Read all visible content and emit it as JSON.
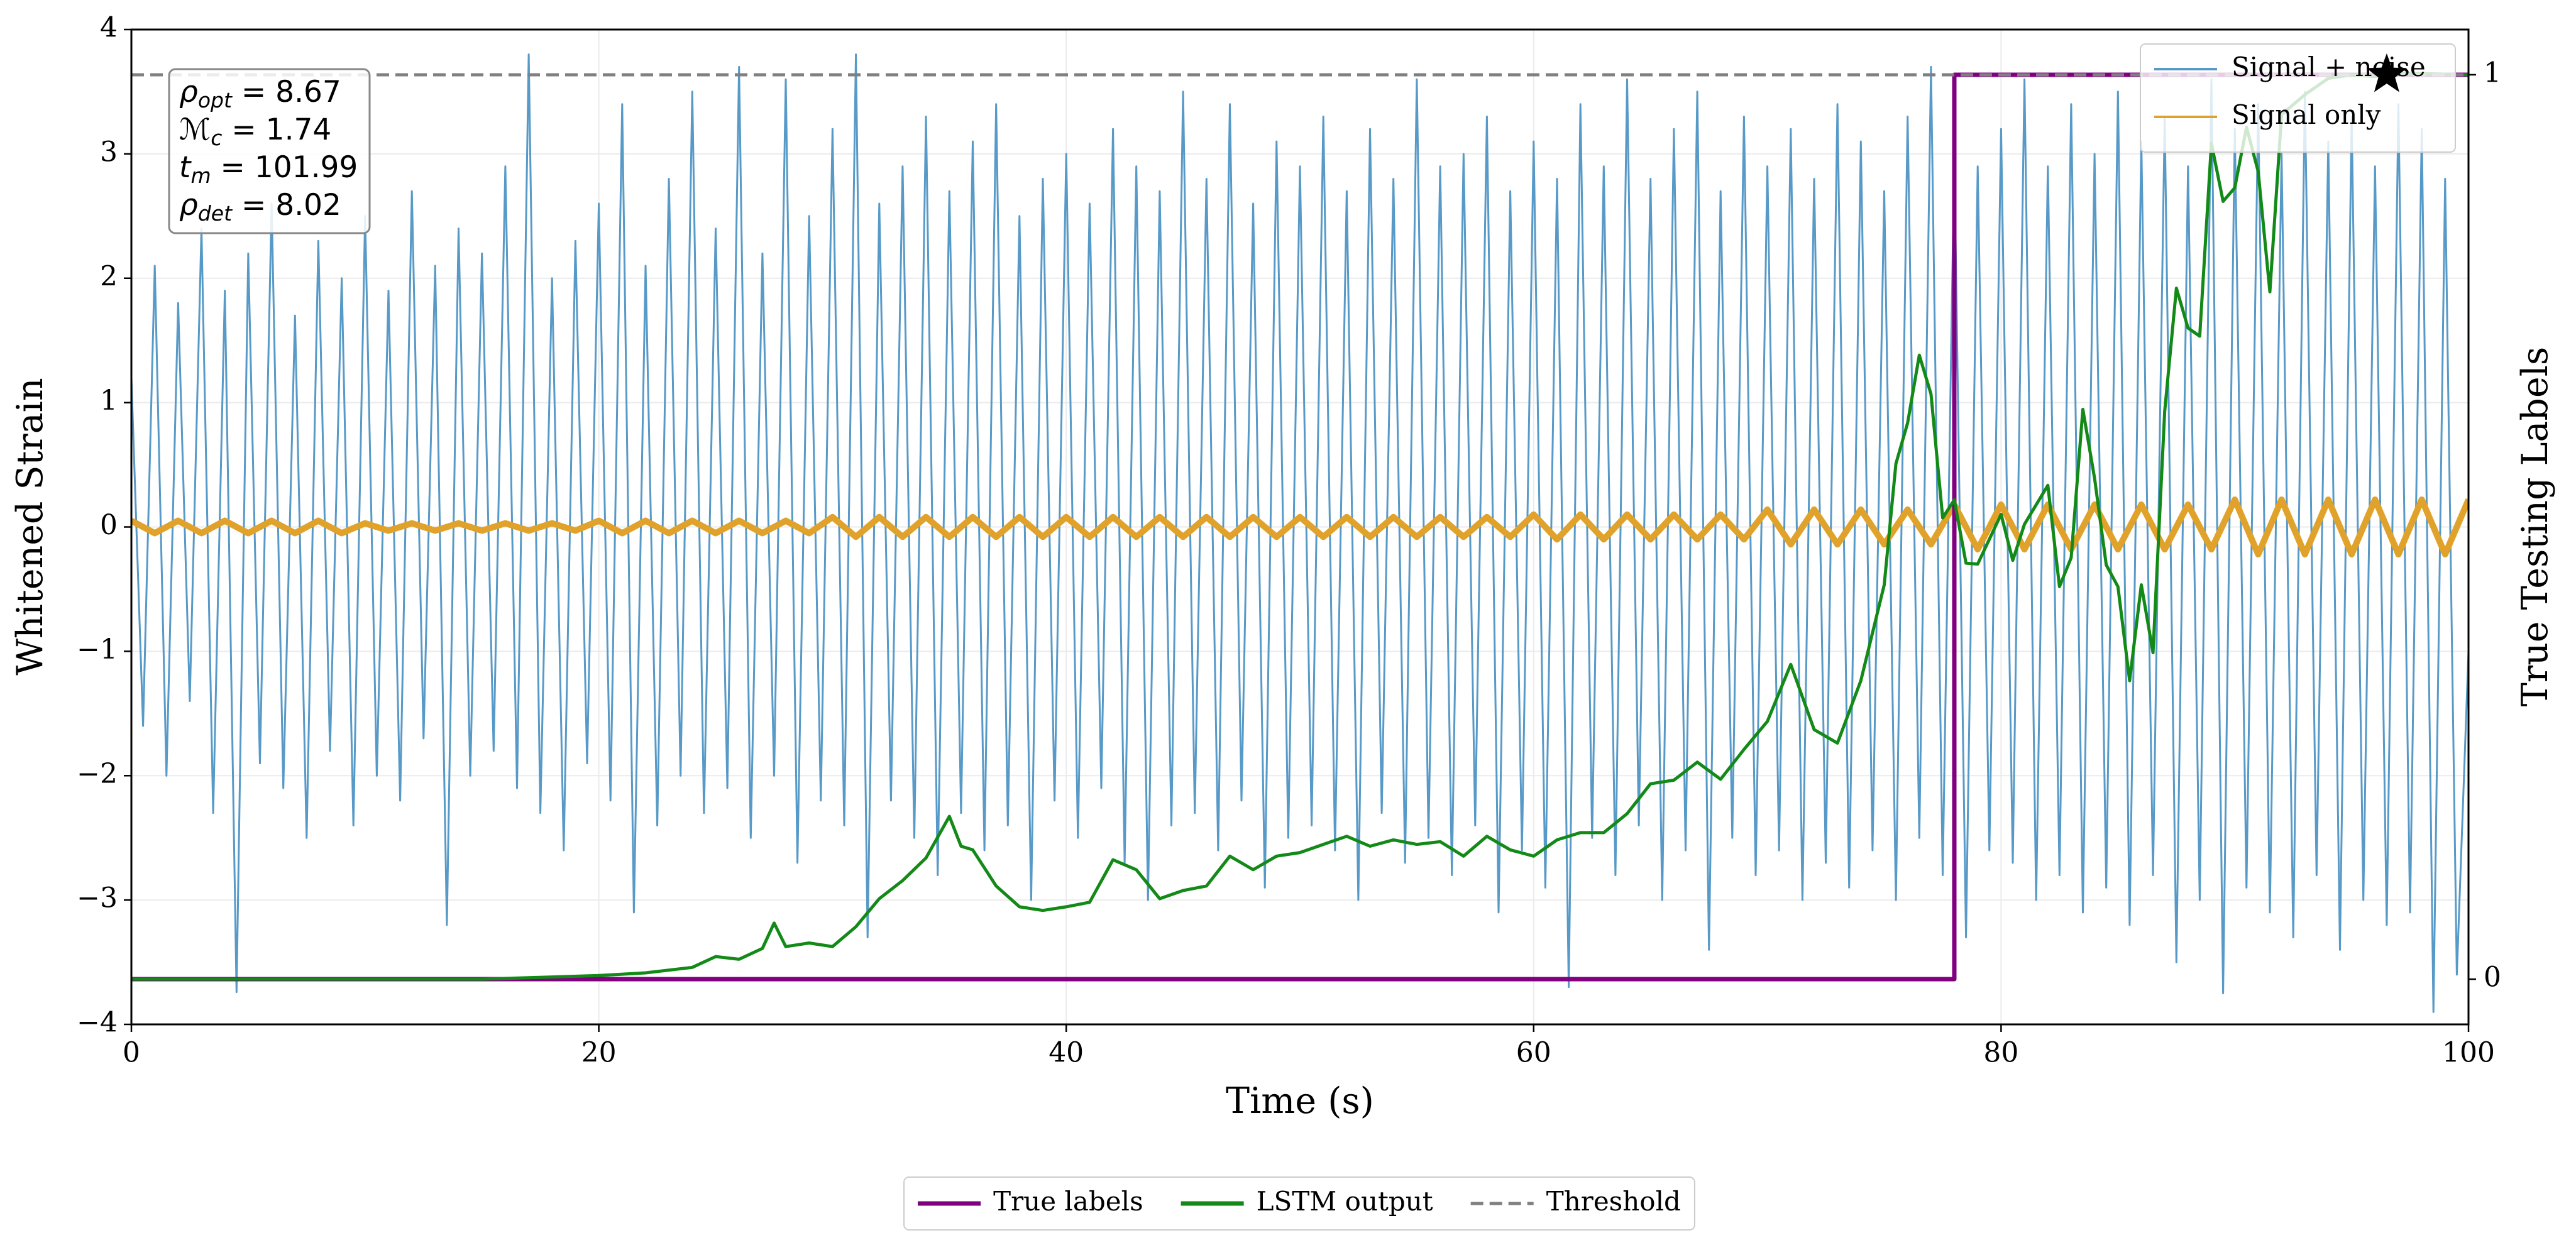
{
  "chart_data": {
    "type": "line",
    "xlabel": "Time (s)",
    "ylabel": "Whitened Strain",
    "y2label": "True Testing Labels",
    "xlim": [
      0,
      100
    ],
    "xticks": [
      0,
      20,
      40,
      60,
      80,
      100
    ],
    "ylim": [
      -4,
      4
    ],
    "yticks": [
      {
        "value": -4,
        "label": "−4"
      },
      {
        "value": -3,
        "label": "−3"
      },
      {
        "value": -2,
        "label": "−2"
      },
      {
        "value": -1,
        "label": "−1"
      },
      0,
      1,
      2,
      3,
      4
    ],
    "y2lim": [
      -0.05,
      1.05
    ],
    "y2ticks": [
      0,
      1
    ],
    "grid": true,
    "series": [
      {
        "name": "Signal + noise",
        "color": "#5799c7",
        "width": 3,
        "legend": "upper right",
        "x": [
          0,
          0.5,
          1,
          1.5,
          2,
          2.5,
          3,
          3.5,
          4,
          4.5,
          5,
          5.5,
          6,
          6.5,
          7,
          7.5,
          8,
          8.5,
          9,
          9.5,
          10,
          10.5,
          11,
          11.5,
          12,
          12.5,
          13,
          13.5,
          14,
          14.5,
          15,
          15.5,
          16,
          16.5,
          17,
          17.5,
          18,
          18.5,
          19,
          19.5,
          20,
          20.5,
          21,
          21.5,
          22,
          22.5,
          23,
          23.5,
          24,
          24.5,
          25,
          25.5,
          26,
          26.5,
          27,
          27.5,
          28,
          28.5,
          29,
          29.5,
          30,
          30.5,
          31,
          31.5,
          32,
          32.5,
          33,
          33.5,
          34,
          34.5,
          35,
          35.5,
          36,
          36.5,
          37,
          37.5,
          38,
          38.5,
          39,
          39.5,
          40,
          40.5,
          41,
          41.5,
          42,
          42.5,
          43,
          43.5,
          44,
          44.5,
          45,
          45.5,
          46,
          46.5,
          47,
          47.5,
          48,
          48.5,
          49,
          49.5,
          50,
          50.5,
          51,
          51.5,
          52,
          52.5,
          53,
          53.5,
          54,
          54.5,
          55,
          55.5,
          56,
          56.5,
          57,
          57.5,
          58,
          58.5,
          59,
          59.5,
          60,
          60.5,
          61,
          61.5,
          62,
          62.5,
          63,
          63.5,
          64,
          64.5,
          65,
          65.5,
          66,
          66.5,
          67,
          67.5,
          68,
          68.5,
          69,
          69.5,
          70,
          70.5,
          71,
          71.5,
          72,
          72.5,
          73,
          73.5,
          74,
          74.5,
          75,
          75.5,
          76,
          76.5,
          77,
          77.5,
          78,
          78.5,
          79,
          79.5,
          80,
          80.5,
          81,
          81.5,
          82,
          82.5,
          83,
          83.5,
          84,
          84.5,
          85,
          85.5,
          86,
          86.5,
          87,
          87.5,
          88,
          88.5,
          89,
          89.5,
          90,
          90.5,
          91,
          91.5,
          92,
          92.5,
          93,
          93.5,
          94,
          94.5,
          95,
          95.5,
          96,
          96.5,
          97,
          97.5,
          98,
          98.5,
          99,
          99.5,
          100
        ],
        "values": [
          1.2,
          -1.6,
          2.1,
          -2.0,
          1.8,
          -1.4,
          2.4,
          -2.3,
          1.9,
          -3.74,
          2.2,
          -1.9,
          2.6,
          -2.1,
          1.7,
          -2.5,
          2.3,
          -1.8,
          2.0,
          -2.4,
          2.5,
          -2.0,
          1.9,
          -2.2,
          2.7,
          -1.7,
          2.1,
          -3.2,
          2.4,
          -2.0,
          2.2,
          -1.8,
          2.9,
          -2.1,
          3.8,
          -2.3,
          2.0,
          -2.6,
          2.3,
          -1.9,
          2.6,
          -2.2,
          3.4,
          -3.1,
          2.1,
          -2.4,
          2.8,
          -2.0,
          3.5,
          -2.3,
          2.4,
          -2.1,
          3.7,
          -2.5,
          2.2,
          -2.0,
          3.6,
          -2.7,
          2.5,
          -2.2,
          3.2,
          -2.4,
          3.8,
          -3.3,
          2.6,
          -2.2,
          2.9,
          -2.5,
          3.3,
          -2.8,
          2.7,
          -2.3,
          3.1,
          -2.6,
          3.4,
          -2.4,
          2.5,
          -3.0,
          2.8,
          -2.2,
          3.0,
          -2.5,
          2.6,
          -2.1,
          3.2,
          -2.7,
          2.9,
          -3.0,
          2.7,
          -2.4,
          3.5,
          -2.3,
          2.8,
          -2.6,
          3.4,
          -2.2,
          2.6,
          -2.9,
          3.1,
          -2.5,
          2.9,
          -2.4,
          3.3,
          -2.6,
          2.7,
          -3.0,
          3.2,
          -2.3,
          2.8,
          -2.7,
          3.6,
          -2.5,
          2.9,
          -2.8,
          3.0,
          -2.4,
          3.3,
          -3.1,
          2.7,
          -2.6,
          3.1,
          -2.9,
          2.8,
          -3.7,
          3.4,
          -2.5,
          2.9,
          -2.8,
          3.6,
          -2.4,
          2.8,
          -3.0,
          3.2,
          -2.6,
          3.5,
          -3.4,
          2.7,
          -2.5,
          3.3,
          -2.8,
          2.9,
          -2.6,
          3.2,
          -3.0,
          2.8,
          -2.7,
          3.4,
          -2.9,
          3.1,
          -2.6,
          2.7,
          -3.0,
          3.3,
          -2.5,
          3.7,
          -2.8,
          3.0,
          -3.3,
          2.9,
          -2.6,
          3.2,
          -2.7,
          3.6,
          -3.0,
          2.9,
          -2.8,
          3.4,
          -3.1,
          3.0,
          -2.9,
          3.5,
          -3.2,
          3.1,
          -2.8,
          3.3,
          -3.5,
          2.9,
          -3.0,
          3.6,
          -3.75,
          3.2,
          -2.9,
          3.4,
          -3.1,
          3.0,
          -3.3,
          3.5,
          -2.8,
          3.1,
          -3.4,
          3.3,
          -3.0,
          2.9,
          -3.2,
          3.4,
          -3.1,
          3.2,
          -3.9,
          2.8,
          -3.6,
          -1.0
        ]
      },
      {
        "name": "Signal only",
        "color": "#e0a22a",
        "width": 10,
        "legend": "upper right",
        "x": [
          0,
          1,
          2,
          3,
          4,
          5,
          6,
          7,
          8,
          9,
          10,
          11,
          12,
          13,
          14,
          15,
          16,
          17,
          18,
          19,
          20,
          21,
          22,
          23,
          24,
          25,
          26,
          27,
          28,
          29,
          30,
          31,
          32,
          33,
          34,
          35,
          36,
          37,
          38,
          39,
          40,
          41,
          42,
          43,
          44,
          45,
          46,
          47,
          48,
          49,
          50,
          51,
          52,
          53,
          54,
          55,
          56,
          57,
          58,
          59,
          60,
          61,
          62,
          63,
          64,
          65,
          66,
          67,
          68,
          69,
          70,
          71,
          72,
          73,
          74,
          75,
          76,
          77,
          78,
          79,
          80,
          81,
          82,
          83,
          84,
          85,
          86,
          87,
          88,
          89,
          90,
          91,
          92,
          93,
          94,
          95,
          96,
          97,
          98,
          99,
          100
        ],
        "values": [
          0.05,
          -0.05,
          0.05,
          -0.05,
          0.05,
          -0.05,
          0.05,
          -0.05,
          0.05,
          -0.05,
          0.03,
          -0.03,
          0.03,
          -0.03,
          0.03,
          -0.03,
          0.03,
          -0.03,
          0.03,
          -0.03,
          0.05,
          -0.05,
          0.05,
          -0.05,
          0.05,
          -0.05,
          0.05,
          -0.05,
          0.05,
          -0.05,
          0.08,
          -0.08,
          0.08,
          -0.08,
          0.08,
          -0.08,
          0.08,
          -0.08,
          0.08,
          -0.08,
          0.08,
          -0.08,
          0.08,
          -0.08,
          0.08,
          -0.08,
          0.08,
          -0.08,
          0.08,
          -0.08,
          0.08,
          -0.08,
          0.08,
          -0.08,
          0.08,
          -0.08,
          0.08,
          -0.08,
          0.08,
          -0.08,
          0.1,
          -0.1,
          0.1,
          -0.1,
          0.1,
          -0.1,
          0.1,
          -0.1,
          0.1,
          -0.1,
          0.14,
          -0.14,
          0.14,
          -0.14,
          0.14,
          -0.14,
          0.14,
          -0.14,
          0.18,
          -0.18,
          0.18,
          -0.18,
          0.18,
          -0.18,
          0.18,
          -0.18,
          0.18,
          -0.18,
          0.18,
          -0.18,
          0.22,
          -0.22,
          0.22,
          -0.22,
          0.22,
          -0.22,
          0.22,
          -0.22,
          0.22,
          -0.22,
          0.22
        ]
      },
      {
        "name": "True labels",
        "color": "#800080",
        "width": 7,
        "axis": "y2",
        "legend": "lower center",
        "x": [
          0,
          78,
          78,
          100
        ],
        "values": [
          0,
          0,
          1,
          1
        ]
      },
      {
        "name": "LSTM output",
        "color": "#138a17",
        "width": 5,
        "axis": "y2",
        "legend": "lower center",
        "x": [
          0,
          15,
          20,
          22,
          24,
          25,
          26,
          27,
          27.5,
          28,
          29,
          30,
          31,
          32,
          33,
          34,
          35,
          35.5,
          36,
          37,
          38,
          39,
          40,
          41,
          42,
          43,
          44,
          45,
          46,
          47,
          48,
          49,
          50,
          51,
          52,
          53,
          54,
          55,
          56,
          57,
          58,
          59,
          60,
          61,
          62,
          63,
          64,
          65,
          66,
          67,
          68,
          69,
          70,
          71,
          72,
          73,
          74,
          75,
          75.5,
          76,
          76.5,
          77,
          77.5,
          78,
          78.5,
          79,
          80,
          80.5,
          81,
          82,
          82.5,
          83,
          83.5,
          84,
          84.5,
          85,
          85.5,
          86,
          86.5,
          87,
          87.5,
          88,
          88.5,
          89,
          89.5,
          90,
          90.5,
          91,
          91.5,
          92,
          93,
          94,
          95,
          96,
          97,
          100
        ],
        "values": [
          0,
          0,
          0.004,
          0.007,
          0.013,
          0.025,
          0.022,
          0.034,
          0.062,
          0.036,
          0.04,
          0.036,
          0.058,
          0.089,
          0.109,
          0.134,
          0.18,
          0.147,
          0.143,
          0.103,
          0.08,
          0.076,
          0.08,
          0.085,
          0.132,
          0.121,
          0.089,
          0.098,
          0.103,
          0.136,
          0.121,
          0.136,
          0.14,
          0.149,
          0.158,
          0.147,
          0.154,
          0.149,
          0.152,
          0.136,
          0.158,
          0.143,
          0.136,
          0.154,
          0.162,
          0.162,
          0.183,
          0.216,
          0.22,
          0.24,
          0.221,
          0.254,
          0.285,
          0.348,
          0.276,
          0.261,
          0.33,
          0.436,
          0.57,
          0.615,
          0.69,
          0.647,
          0.51,
          0.53,
          0.46,
          0.459,
          0.514,
          0.463,
          0.503,
          0.546,
          0.434,
          0.466,
          0.63,
          0.554,
          0.458,
          0.434,
          0.33,
          0.436,
          0.361,
          0.628,
          0.764,
          0.72,
          0.711,
          0.924,
          0.86,
          0.875,
          0.942,
          0.893,
          0.76,
          0.956,
          0.978,
          0.996,
          1.0,
          0.998,
          1.002,
          1.0
        ]
      }
    ],
    "threshold": {
      "name": "Threshold",
      "value": 1,
      "axis": "y2",
      "color": "#808080",
      "legend": "lower center"
    },
    "detection": {
      "x": 96.5,
      "value": 1,
      "axis": "y2",
      "color": "#000000"
    },
    "annotation": [
      {
        "symbol": "ρ",
        "sub": "opt",
        "text": " = 8.67"
      },
      {
        "symbol": "ℳ",
        "sub": "c",
        "text": " = 1.74"
      },
      {
        "symbol": "t",
        "sub": "m",
        "text": " = 101.99"
      },
      {
        "symbol": "ρ",
        "sub": "det",
        "text": " = 8.02"
      }
    ]
  }
}
